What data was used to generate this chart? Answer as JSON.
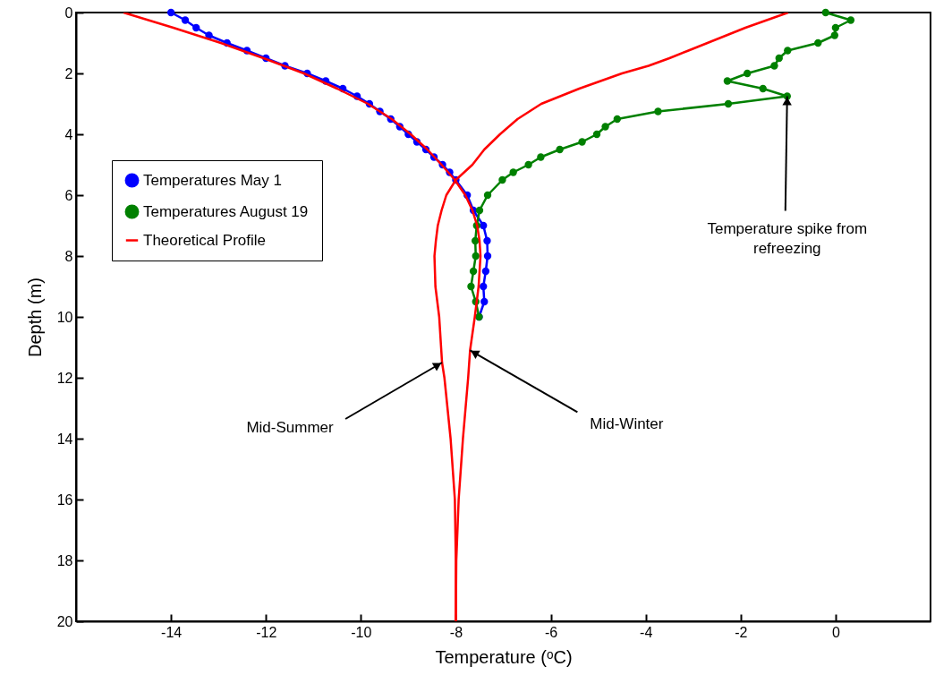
{
  "chart_data": {
    "type": "line",
    "xlabel": "Temperature (ᵒC)",
    "ylabel": "Depth (m)",
    "xlim": [
      -16,
      2
    ],
    "xticks": [
      -14,
      -12,
      -10,
      -8,
      -6,
      -4,
      -2,
      0
    ],
    "ylim": [
      20,
      0
    ],
    "yticks": [
      0,
      2,
      4,
      6,
      8,
      10,
      12,
      14,
      16,
      18,
      20
    ],
    "grid": false,
    "legend": "left",
    "series": [
      {
        "name": "Temperatures May 1",
        "color": "#0000ff",
        "marker": "circle",
        "x": [
          -14.0,
          -13.7,
          -13.47,
          -13.2,
          -12.82,
          -12.4,
          -12.0,
          -11.6,
          -11.13,
          -10.74,
          -10.38,
          -10.08,
          -9.82,
          -9.6,
          -9.37,
          -9.18,
          -9.0,
          -8.82,
          -8.63,
          -8.46,
          -8.28,
          -8.13,
          -8.0,
          -7.76,
          -7.63,
          -7.42,
          -7.34,
          -7.33,
          -7.37,
          -7.42,
          -7.4,
          -7.51
        ],
        "values": [
          0,
          0.25,
          0.5,
          0.75,
          1,
          1.25,
          1.5,
          1.75,
          2,
          2.25,
          2.5,
          2.75,
          3,
          3.25,
          3.5,
          3.75,
          4,
          4.25,
          4.5,
          4.75,
          5,
          5.25,
          5.5,
          6,
          6.5,
          7,
          7.5,
          8,
          8.5,
          9,
          9.5,
          10
        ]
      },
      {
        "name": "Temperatures August 19",
        "color": "#008000",
        "marker": "circle",
        "x": [
          -0.21,
          0.32,
          0.0,
          -0.02,
          -0.37,
          -1.01,
          -1.19,
          -1.29,
          -1.86,
          -2.28,
          -1.53,
          -1.02,
          -2.26,
          -3.74,
          -4.6,
          -4.85,
          -5.03,
          -5.34,
          -5.81,
          -6.21,
          -6.47,
          -6.79,
          -7.02,
          -7.33,
          -7.5,
          -7.56,
          -7.59,
          -7.58,
          -7.63,
          -7.68,
          -7.58,
          -7.51
        ],
        "values": [
          0,
          0.25,
          0.5,
          0.75,
          1,
          1.25,
          1.5,
          1.75,
          2,
          2.25,
          2.5,
          2.75,
          3,
          3.25,
          3.5,
          3.75,
          4,
          4.25,
          4.5,
          4.75,
          5,
          5.25,
          5.5,
          6,
          6.5,
          7,
          7.5,
          8,
          8.5,
          9,
          9.5,
          10
        ]
      },
      {
        "name": "Theoretical Profile",
        "color": "#ff0000",
        "marker": "none",
        "x": [
          -15.0,
          -13.95,
          -12.95,
          -12.05,
          -11.2,
          -10.5,
          -9.85,
          -9.35,
          -8.95,
          -8.6,
          -8.3,
          -8.02,
          -7.8,
          -7.65,
          -7.55,
          -7.5,
          -7.48,
          -7.52,
          -7.6,
          -7.7,
          -7.74,
          -7.85,
          -7.94,
          -7.99,
          -8.0
        ],
        "values": [
          0,
          0.5,
          1,
          1.5,
          2,
          2.5,
          3,
          3.5,
          4,
          4.5,
          5,
          5.5,
          6,
          6.5,
          7,
          7.5,
          8,
          9,
          10,
          11.1,
          12,
          14,
          16,
          18,
          20
        ]
      },
      {
        "color": "#ff0000",
        "marker": "none",
        "x": [
          -1.0,
          -1.45,
          -1.9,
          -2.3,
          -2.7,
          -3.1,
          -3.5,
          -3.94,
          -4.5,
          -5.4,
          -6.2,
          -6.7,
          -7.07,
          -7.4,
          -7.65,
          -8.0,
          -8.2,
          -8.3,
          -8.38,
          -8.42,
          -8.45,
          -8.43,
          -8.35,
          -8.29,
          -8.24,
          -8.11,
          -8.02,
          -8.0,
          -8.0
        ],
        "values": [
          0,
          0.25,
          0.5,
          0.75,
          1,
          1.25,
          1.5,
          1.75,
          2,
          2.5,
          3,
          3.5,
          4,
          4.5,
          5,
          5.5,
          6,
          6.5,
          7,
          7.5,
          8,
          9,
          10,
          11.5,
          12,
          14,
          16,
          18,
          20
        ]
      }
    ],
    "annotations": [
      {
        "text": "Mid-Summer",
        "x": -8.29,
        "y": 11.5
      },
      {
        "text": "Mid-Winter",
        "x": -7.7,
        "y": 11.1
      },
      {
        "text": "Temperature spike from refreezing",
        "x": -1.02,
        "y": 2.75
      }
    ]
  }
}
